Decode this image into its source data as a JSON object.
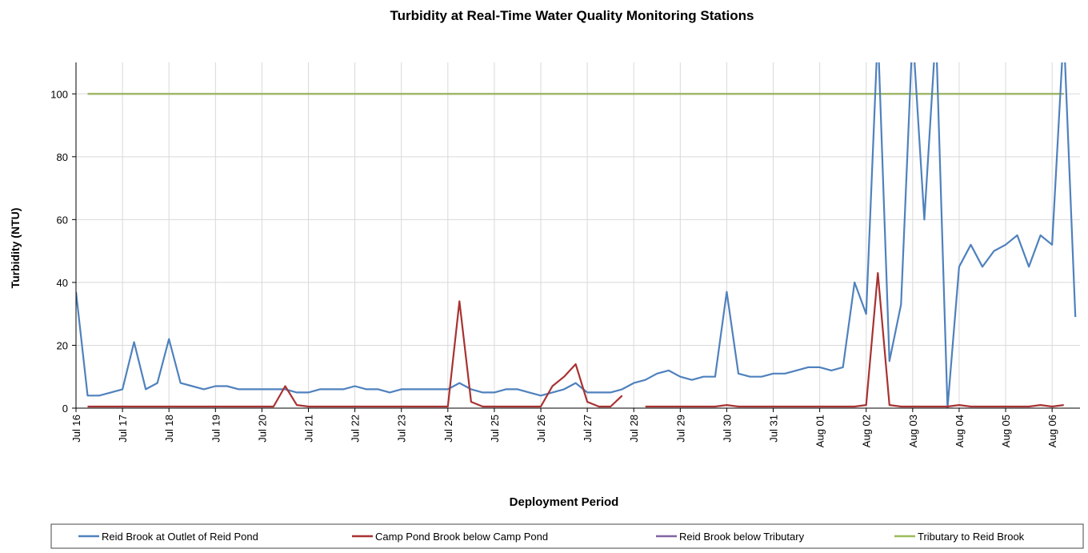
{
  "chart_data": {
    "type": "line",
    "title": "Turbidity at Real-Time Water Quality Monitoring Stations",
    "x_label": "Deployment Period",
    "y_label": "Turbidity (NTU)",
    "xlim": [
      0,
      21.6
    ],
    "ylim": [
      0,
      110
    ],
    "yticks": [
      0,
      20,
      40,
      60,
      80,
      100
    ],
    "xticks": [
      {
        "value": 0,
        "label": "Jul 16"
      },
      {
        "value": 1,
        "label": "Jul 17"
      },
      {
        "value": 2,
        "label": "Jul 18"
      },
      {
        "value": 3,
        "label": "Jul 19"
      },
      {
        "value": 4,
        "label": "Jul 20"
      },
      {
        "value": 5,
        "label": "Jul 21"
      },
      {
        "value": 6,
        "label": "Jul 22"
      },
      {
        "value": 7,
        "label": "Jul 23"
      },
      {
        "value": 8,
        "label": "Jul 24"
      },
      {
        "value": 9,
        "label": "Jul 25"
      },
      {
        "value": 10,
        "label": "Jul 26"
      },
      {
        "value": 11,
        "label": "Jul 27"
      },
      {
        "value": 12,
        "label": "Jul 28"
      },
      {
        "value": 13,
        "label": "Jul 29"
      },
      {
        "value": 14,
        "label": "Jul 30"
      },
      {
        "value": 15,
        "label": "Jul 31"
      },
      {
        "value": 16,
        "label": "Aug 01"
      },
      {
        "value": 17,
        "label": "Aug 02"
      },
      {
        "value": 18,
        "label": "Aug 03"
      },
      {
        "value": 19,
        "label": "Aug 04"
      },
      {
        "value": 20,
        "label": "Aug 05"
      },
      {
        "value": 21,
        "label": "Aug 06"
      }
    ],
    "grid": true,
    "x": [
      0,
      0.25,
      0.5,
      0.75,
      1,
      1.25,
      1.5,
      1.75,
      2,
      2.25,
      2.5,
      2.75,
      3,
      3.25,
      3.5,
      3.75,
      4,
      4.25,
      4.5,
      4.75,
      5,
      5.25,
      5.5,
      5.75,
      6,
      6.25,
      6.5,
      6.75,
      7,
      7.25,
      7.5,
      7.75,
      8,
      8.25,
      8.5,
      8.75,
      9,
      9.25,
      9.5,
      9.75,
      10,
      10.25,
      10.5,
      10.75,
      11,
      11.25,
      11.5,
      11.75,
      12,
      12.25,
      12.5,
      12.75,
      13,
      13.25,
      13.5,
      13.75,
      14,
      14.25,
      14.5,
      14.75,
      15,
      15.25,
      15.5,
      15.75,
      16,
      16.25,
      16.5,
      16.75,
      17,
      17.25,
      17.5,
      17.75,
      18,
      18.25,
      18.5,
      18.75,
      19,
      19.25,
      19.5,
      19.75,
      20,
      20.25,
      20.5,
      20.75,
      21,
      21.25,
      21.5
    ],
    "series": [
      {
        "name": "Reid Brook at Outlet of Reid Pond",
        "color": "#4f81bd",
        "values": [
          37,
          4,
          4,
          5,
          6,
          21,
          6,
          8,
          22,
          8,
          7,
          6,
          7,
          7,
          6,
          6,
          6,
          6,
          6,
          5,
          5,
          6,
          6,
          6,
          7,
          6,
          6,
          5,
          6,
          6,
          6,
          6,
          6,
          8,
          6,
          5,
          5,
          6,
          6,
          5,
          4,
          5,
          6,
          8,
          5,
          5,
          5,
          6,
          8,
          9,
          11,
          12,
          10,
          9,
          10,
          10,
          37,
          11,
          10,
          10,
          11,
          11,
          12,
          13,
          13,
          12,
          13,
          40,
          30,
          120,
          15,
          33,
          120,
          60,
          120,
          0,
          45,
          52,
          45,
          50,
          52,
          55,
          45,
          55,
          52,
          120,
          29
        ]
      },
      {
        "name": "Camp Pond Brook below Camp Pond",
        "color": "#a83232",
        "values": [
          null,
          0.5,
          0.5,
          0.5,
          0.5,
          0.5,
          0.5,
          0.5,
          0.5,
          0.5,
          0.5,
          0.5,
          0.5,
          0.5,
          0.5,
          0.5,
          0.5,
          0.5,
          7,
          1,
          0.5,
          0.5,
          0.5,
          0.5,
          0.5,
          0.5,
          0.5,
          0.5,
          0.5,
          0.5,
          0.5,
          0.5,
          0.5,
          34,
          2,
          0.5,
          0.5,
          0.5,
          0.5,
          0.5,
          0.5,
          7,
          10,
          14,
          2,
          0.5,
          0.5,
          4,
          null,
          0.5,
          0.5,
          0.5,
          0.5,
          0.5,
          0.5,
          0.5,
          1,
          0.5,
          0.5,
          0.5,
          0.5,
          0.5,
          0.5,
          0.5,
          0.5,
          0.5,
          0.5,
          0.5,
          1,
          43,
          1,
          0.5,
          0.5,
          0.5,
          0.5,
          0.5,
          1,
          0.5,
          0.5,
          0.5,
          0.5,
          0.5,
          0.5,
          1,
          0.5,
          1,
          null
        ]
      },
      {
        "name": "Reid Brook below Tributary",
        "color": "#8064a2",
        "values": [
          null,
          100,
          100,
          100,
          100,
          100,
          100,
          100,
          100,
          100,
          100,
          100,
          100,
          100,
          100,
          100,
          100,
          100,
          100,
          100,
          100,
          100,
          100,
          100,
          100,
          100,
          100,
          100,
          100,
          100,
          100,
          100,
          100,
          100,
          100,
          100,
          100,
          100,
          100,
          100,
          100,
          100,
          100,
          100,
          100,
          100,
          100,
          100,
          100,
          100,
          100,
          100,
          100,
          100,
          100,
          100,
          100,
          100,
          100,
          100,
          100,
          100,
          100,
          100,
          100,
          100,
          100,
          100,
          100,
          100,
          100,
          100,
          100,
          100,
          100,
          100,
          100,
          100,
          100,
          100,
          100,
          100,
          100,
          100,
          100,
          100,
          null
        ]
      },
      {
        "name": "Tributary to Reid Brook",
        "color": "#9bbb59",
        "values": [
          null,
          100,
          100,
          100,
          100,
          100,
          100,
          100,
          100,
          100,
          100,
          100,
          100,
          100,
          100,
          100,
          100,
          100,
          100,
          100,
          100,
          100,
          100,
          100,
          100,
          100,
          100,
          100,
          100,
          100,
          100,
          100,
          100,
          100,
          100,
          100,
          100,
          100,
          100,
          100,
          100,
          100,
          100,
          100,
          100,
          100,
          100,
          100,
          100,
          100,
          100,
          100,
          100,
          100,
          100,
          100,
          100,
          100,
          100,
          100,
          100,
          100,
          100,
          100,
          100,
          100,
          100,
          100,
          100,
          100,
          100,
          100,
          100,
          100,
          100,
          100,
          100,
          100,
          100,
          100,
          100,
          100,
          100,
          100,
          100,
          100,
          null
        ]
      }
    ]
  }
}
